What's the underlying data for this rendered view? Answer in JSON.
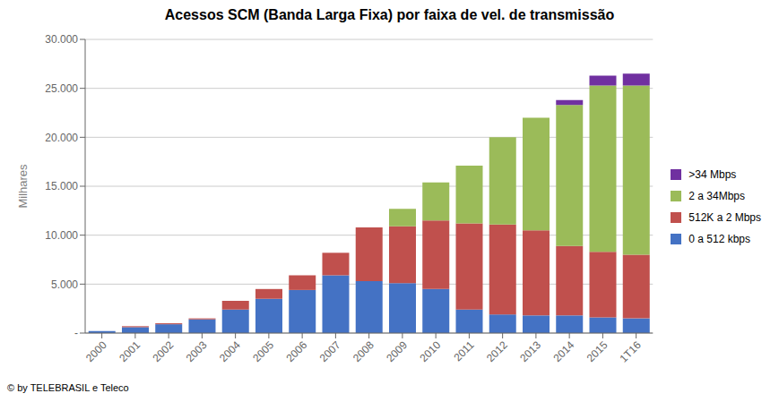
{
  "chart_data": {
    "type": "bar",
    "title": "Acessos SCM (Banda Larga Fixa) por faixa de vel. de transmissão",
    "ylabel": "Milhares",
    "categories": [
      "2000",
      "2001",
      "2002",
      "2003",
      "2004",
      "2005",
      "2006",
      "2007",
      "2008",
      "2009",
      "2010",
      "2011",
      "2012",
      "2013",
      "2014",
      "2015",
      "1T16"
    ],
    "series": [
      {
        "name": "0 a 512 kbps",
        "color": "#4472C4",
        "values": [
          200,
          600,
          900,
          1400,
          2400,
          3500,
          4400,
          5900,
          5300,
          5100,
          4500,
          2400,
          1900,
          1800,
          1800,
          1600,
          1500
        ]
      },
      {
        "name": "512K a 2 Mbps",
        "color": "#C0504D",
        "values": [
          0,
          100,
          100,
          100,
          900,
          1000,
          1500,
          2300,
          5500,
          5800,
          7000,
          8800,
          9200,
          8700,
          7100,
          6700,
          6500
        ]
      },
      {
        "name": "2 a 34Mbps",
        "color": "#9BBB59",
        "values": [
          0,
          0,
          0,
          0,
          0,
          0,
          0,
          0,
          0,
          1800,
          3900,
          5900,
          8900,
          11500,
          14400,
          17000,
          17300
        ]
      },
      {
        "name": ">34 Mbps",
        "color": "#7030A0",
        "values": [
          0,
          0,
          0,
          0,
          0,
          0,
          0,
          0,
          0,
          0,
          0,
          0,
          0,
          0,
          500,
          1000,
          1200
        ]
      }
    ],
    "stacked": true,
    "ylim": [
      0,
      30000
    ],
    "yticks": [
      {
        "value": 0,
        "label": "-"
      },
      {
        "value": 5000,
        "label": "5.000"
      },
      {
        "value": 10000,
        "label": "10.000"
      },
      {
        "value": 15000,
        "label": "15.000"
      },
      {
        "value": 20000,
        "label": "20.000"
      },
      {
        "value": 25000,
        "label": "25.000"
      },
      {
        "value": 30000,
        "label": "30.000"
      }
    ],
    "grid": true,
    "legend": "right",
    "annotations": [
      "© by TELEBRASIL e Teleco"
    ]
  }
}
